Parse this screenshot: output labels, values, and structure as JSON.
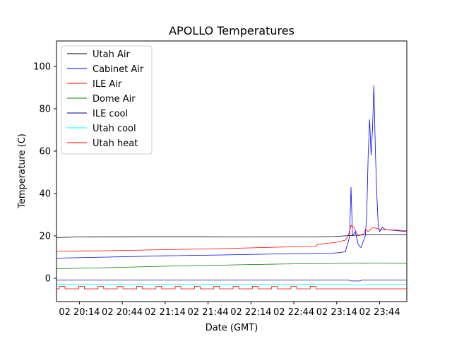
{
  "chart_data": {
    "type": "line",
    "title": "APOLLO Temperatures",
    "xlabel": "Date (GMT)",
    "ylabel": "Temperature (C)",
    "xlim_minutes_after_2014": [
      -16,
      229
    ],
    "ylim": [
      -11,
      112
    ],
    "x_ticks": [
      {
        "t": 0,
        "label": "02 20:14"
      },
      {
        "t": 30,
        "label": "02 20:44"
      },
      {
        "t": 60,
        "label": "02 21:14"
      },
      {
        "t": 90,
        "label": "02 21:44"
      },
      {
        "t": 120,
        "label": "02 22:14"
      },
      {
        "t": 150,
        "label": "02 22:44"
      },
      {
        "t": 180,
        "label": "02 23:14"
      },
      {
        "t": 210,
        "label": "02 23:44"
      }
    ],
    "y_ticks": [
      0,
      20,
      40,
      60,
      80,
      100
    ],
    "legend_position": "upper left",
    "series": [
      {
        "name": "Utah Air",
        "color": "#000000",
        "points": [
          [
            -16,
            19.2
          ],
          [
            0,
            19.5
          ],
          [
            40,
            19.6
          ],
          [
            80,
            19.6
          ],
          [
            120,
            19.5
          ],
          [
            160,
            19.5
          ],
          [
            178,
            19.7
          ],
          [
            190,
            20.2
          ],
          [
            200,
            20.5
          ],
          [
            229,
            20.5
          ]
        ]
      },
      {
        "name": "Cabinet Air",
        "color": "#0000ff",
        "points": [
          [
            -16,
            9.5
          ],
          [
            20,
            10.0
          ],
          [
            60,
            10.6
          ],
          [
            100,
            11.0
          ],
          [
            140,
            11.5
          ],
          [
            175,
            11.8
          ],
          [
            180,
            12.0
          ],
          [
            186,
            12.5
          ],
          [
            187,
            15.0
          ],
          [
            188,
            17.0
          ],
          [
            189,
            20.0
          ],
          [
            190,
            43.0
          ],
          [
            191,
            20.0
          ],
          [
            193,
            22.0
          ],
          [
            195,
            16.0
          ],
          [
            196,
            15.0
          ],
          [
            197,
            14.5
          ],
          [
            200,
            20.0
          ],
          [
            201,
            30.0
          ],
          [
            202,
            58.0
          ],
          [
            203,
            75.0
          ],
          [
            204,
            58.0
          ],
          [
            205,
            70.0
          ],
          [
            206,
            91.0
          ],
          [
            207,
            60.0
          ],
          [
            208,
            40.0
          ],
          [
            209,
            25.0
          ],
          [
            210,
            22.0
          ],
          [
            212,
            24.0
          ],
          [
            214,
            23.0
          ],
          [
            229,
            22.0
          ]
        ]
      },
      {
        "name": "ILE Air",
        "color": "#ff0000",
        "points": [
          [
            -16,
            12.8
          ],
          [
            20,
            13.0
          ],
          [
            60,
            13.5
          ],
          [
            100,
            14.0
          ],
          [
            140,
            14.7
          ],
          [
            165,
            15.0
          ],
          [
            166,
            15.5
          ],
          [
            167,
            16.0
          ],
          [
            180,
            17.0
          ],
          [
            186,
            18.0
          ],
          [
            188,
            20.0
          ],
          [
            190,
            25.0
          ],
          [
            192,
            24.0
          ],
          [
            195,
            20.0
          ],
          [
            199,
            21.0
          ],
          [
            200,
            23.0
          ],
          [
            202,
            22.0
          ],
          [
            205,
            24.0
          ],
          [
            208,
            23.5
          ],
          [
            212,
            23.0
          ],
          [
            229,
            22.5
          ]
        ]
      },
      {
        "name": "Dome Air",
        "color": "#008000",
        "points": [
          [
            -16,
            4.5
          ],
          [
            20,
            5.0
          ],
          [
            60,
            5.7
          ],
          [
            100,
            6.2
          ],
          [
            140,
            6.7
          ],
          [
            180,
            7.0
          ],
          [
            200,
            7.2
          ],
          [
            229,
            7.0
          ]
        ]
      },
      {
        "name": "ILE cool",
        "color": "#00008b",
        "points": [
          [
            -16,
            -0.8
          ],
          [
            188,
            -0.8
          ],
          [
            190,
            -1.3
          ],
          [
            196,
            -1.3
          ],
          [
            198,
            -0.8
          ],
          [
            229,
            -0.8
          ]
        ]
      },
      {
        "name": "Utah cool",
        "color": "#00ffff",
        "points": [
          [
            -16,
            -2.8
          ],
          [
            188,
            -2.8
          ],
          [
            190,
            -3.2
          ],
          [
            200,
            -3.2
          ],
          [
            202,
            -2.8
          ],
          [
            229,
            -2.8
          ]
        ]
      },
      {
        "name": "Utah heat",
        "color": "#ff0000",
        "points": []
      }
    ],
    "utah_heat_cycle": {
      "low": -5.0,
      "high": -3.8,
      "start": -16,
      "end": 175,
      "period": 13.5,
      "on_duration": 4,
      "after_level": -5.0
    }
  }
}
